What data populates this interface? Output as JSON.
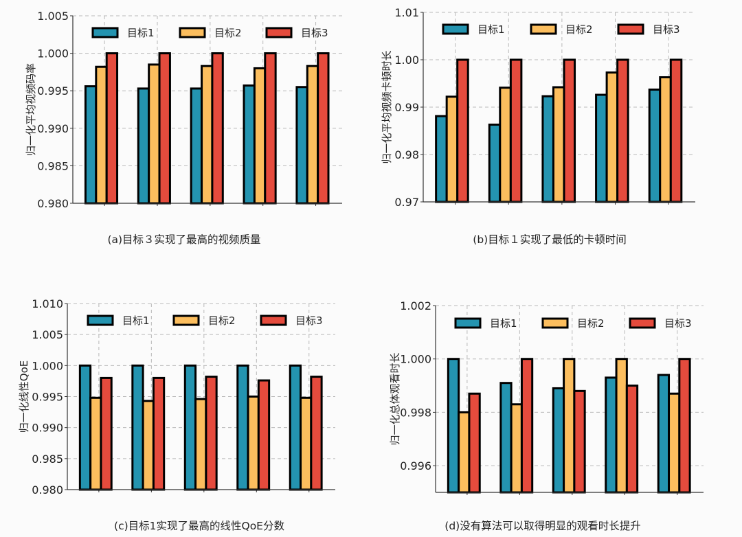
{
  "colors": {
    "series1": "#2494b0",
    "series2": "#fcbe5e",
    "series3": "#e54b3d",
    "edge": "#000000",
    "grid": "#b8b8b8"
  },
  "chart_data": [
    {
      "type": "bar",
      "caption": "(a)目标３实现了最高的视频质量",
      "ylabel": "归一化平均视频码率",
      "ylim": [
        0.98,
        1.005
      ],
      "yticks": [
        0.98,
        0.985,
        0.99,
        0.995,
        1.0,
        1.005
      ],
      "ytick_labels": [
        "0.980",
        "0.985",
        "0.990",
        "0.995",
        "1.000",
        "1.005"
      ],
      "grid": true,
      "legend": "top",
      "categories": [
        "",
        "",
        "",
        "",
        ""
      ],
      "series": [
        {
          "name": "目标1",
          "values": [
            0.9956,
            0.9953,
            0.9953,
            0.9957,
            0.9955
          ]
        },
        {
          "name": "目标2",
          "values": [
            0.9982,
            0.9985,
            0.9983,
            0.998,
            0.9983
          ]
        },
        {
          "name": "目标3",
          "values": [
            1.0,
            1.0,
            1.0,
            1.0,
            1.0
          ]
        }
      ]
    },
    {
      "type": "bar",
      "caption": "(b)目标１实现了最低的卡顿时间",
      "ylabel": "归一化平均视频卡顿时长",
      "ylim": [
        0.97,
        1.01
      ],
      "yticks": [
        0.97,
        0.98,
        0.99,
        1.0,
        1.01
      ],
      "ytick_labels": [
        "0.97",
        "0.98",
        "0.99",
        "1.00",
        "1.01"
      ],
      "grid": true,
      "legend": "top",
      "categories": [
        "",
        "",
        "",
        "",
        ""
      ],
      "series": [
        {
          "name": "目标1",
          "values": [
            0.9881,
            0.9863,
            0.9923,
            0.9926,
            0.9937
          ]
        },
        {
          "name": "目标2",
          "values": [
            0.9922,
            0.9941,
            0.9942,
            0.9973,
            0.9963
          ]
        },
        {
          "name": "目标3",
          "values": [
            1.0,
            1.0,
            1.0,
            1.0,
            1.0
          ]
        }
      ]
    },
    {
      "type": "bar",
      "caption": "(c)目标1实现了最高的线性QoE分数",
      "ylabel": "归一化线性QoE",
      "ylim": [
        0.98,
        1.01
      ],
      "yticks": [
        0.98,
        0.985,
        0.99,
        0.995,
        1.0,
        1.005,
        1.01
      ],
      "ytick_labels": [
        "0.980",
        "0.985",
        "0.990",
        "0.995",
        "1.000",
        "1.005",
        "1.010"
      ],
      "grid": true,
      "legend": "top",
      "categories": [
        "",
        "",
        "",
        "",
        ""
      ],
      "series": [
        {
          "name": "目标1",
          "values": [
            1.0,
            1.0,
            1.0,
            1.0,
            1.0
          ]
        },
        {
          "name": "目标2",
          "values": [
            0.9948,
            0.9943,
            0.9946,
            0.995,
            0.9948
          ]
        },
        {
          "name": "目标3",
          "values": [
            0.998,
            0.998,
            0.9982,
            0.9976,
            0.9982
          ]
        }
      ]
    },
    {
      "type": "bar",
      "caption": "(d)没有算法可以取得明显的观看时长提升",
      "ylabel": "归一化总体观看时长",
      "ylim": [
        0.995,
        1.002
      ],
      "yticks": [
        0.996,
        0.998,
        1.0,
        1.002
      ],
      "ytick_labels": [
        "0.996",
        "0.998",
        "1.000",
        "1.002"
      ],
      "grid": true,
      "legend": "top",
      "categories": [
        "",
        "",
        "",
        "",
        ""
      ],
      "series": [
        {
          "name": "目标1",
          "values": [
            1.0,
            0.9991,
            0.9989,
            0.9993,
            0.9994
          ]
        },
        {
          "name": "目标2",
          "values": [
            0.998,
            0.9983,
            1.0,
            1.0,
            0.9987
          ]
        },
        {
          "name": "目标3",
          "values": [
            0.9987,
            1.0,
            0.9988,
            0.999,
            1.0
          ]
        }
      ]
    }
  ]
}
